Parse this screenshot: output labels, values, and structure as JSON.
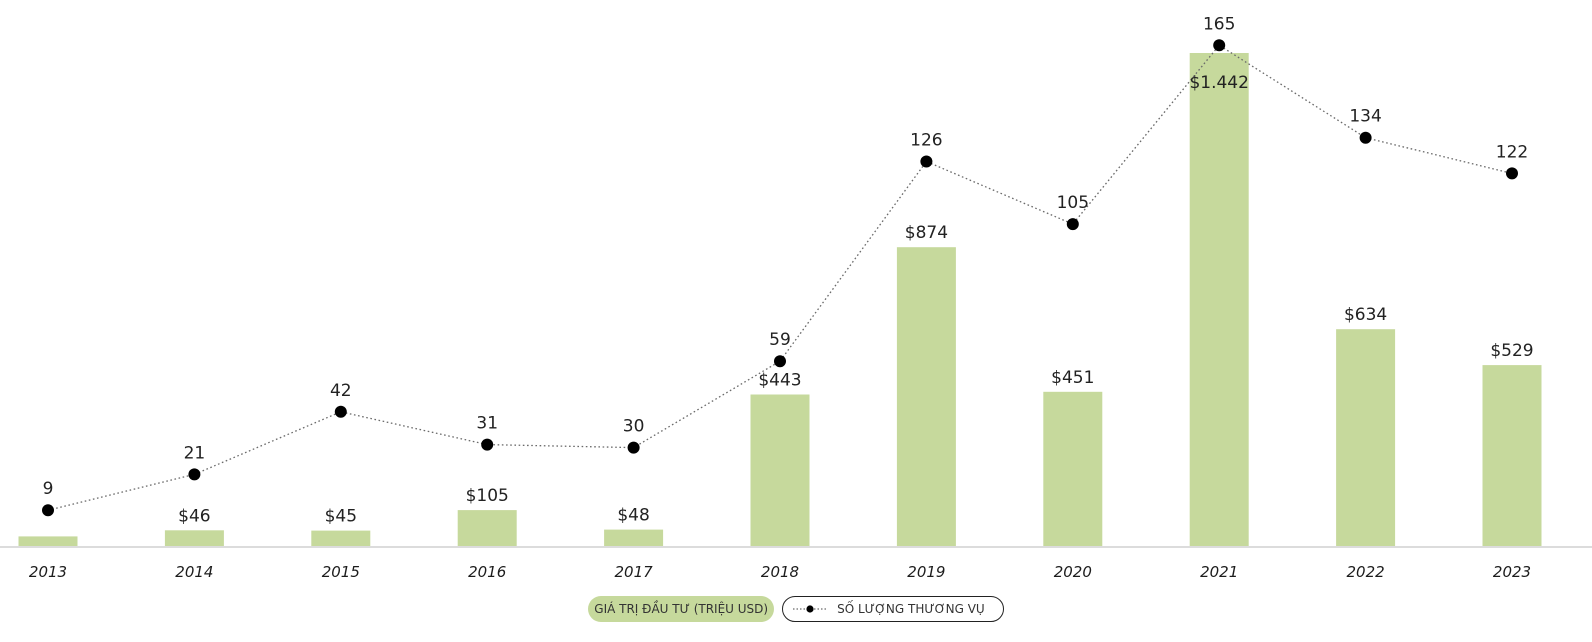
{
  "chart_data": {
    "type": "bar",
    "categories": [
      "2013",
      "2014",
      "2015",
      "2016",
      "2017",
      "2018",
      "2019",
      "2020",
      "2021",
      "2022",
      "2023"
    ],
    "series": [
      {
        "name": "GIÁ TRỊ ĐẦU TƯ (TRIỆU USD)",
        "type": "bar",
        "values": [
          28,
          46,
          45,
          105,
          48,
          443,
          874,
          451,
          1442,
          634,
          529
        ],
        "labels": [
          "",
          "$46",
          "$45",
          "$105",
          "$48",
          "$443",
          "$874",
          "$451",
          "$1.442",
          "$634",
          "$529"
        ],
        "color": "#c6d99c"
      },
      {
        "name": "SỐ LƯỢNG THƯƠNG VỤ",
        "type": "line",
        "values": [
          9,
          21,
          42,
          31,
          30,
          59,
          126,
          105,
          165,
          134,
          122
        ],
        "labels": [
          "9",
          "21",
          "42",
          "31",
          "30",
          "59",
          "126",
          "105",
          "165",
          "134",
          "122"
        ],
        "color": "#000000",
        "line_style": "dotted"
      }
    ],
    "grid": false,
    "legend_position": "bottom-center"
  },
  "legend": {
    "bars_label": "GIÁ TRỊ ĐẦU TƯ (TRIỆU USD)",
    "line_label": "SỐ LƯỢNG THƯƠNG VỤ"
  }
}
